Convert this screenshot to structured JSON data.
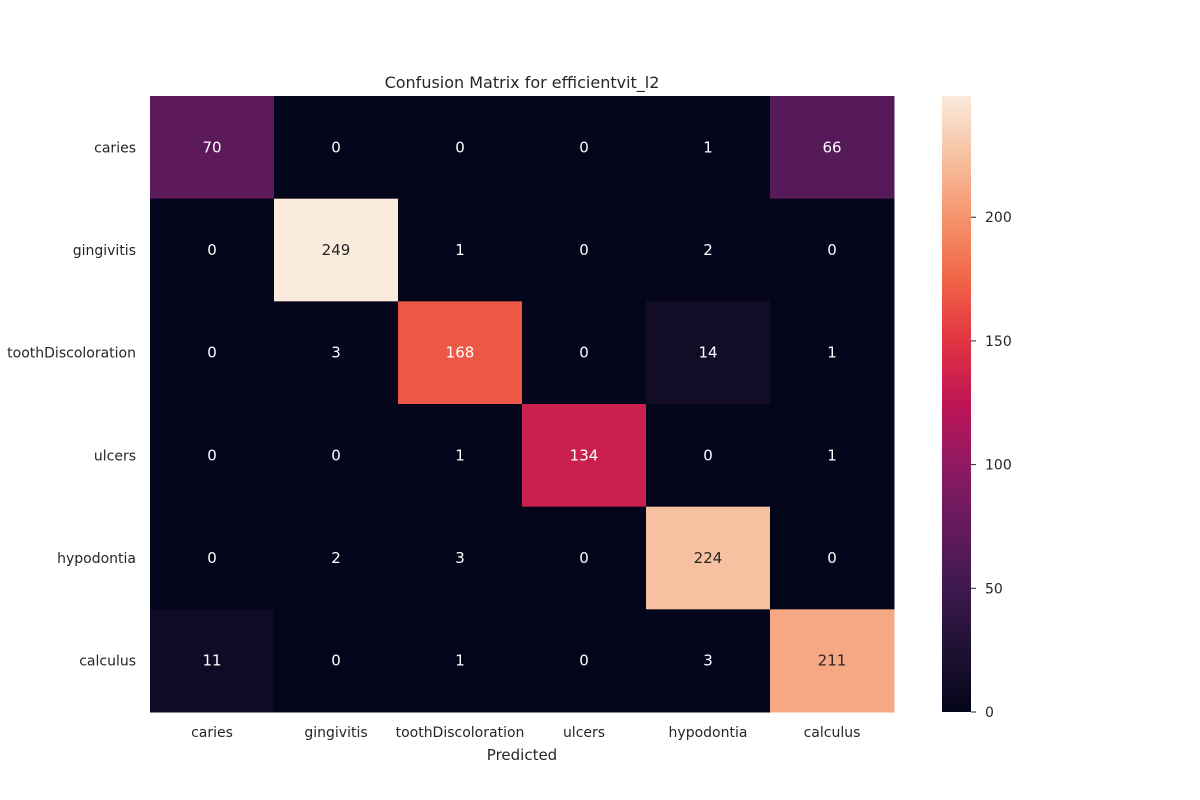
{
  "chart_data": {
    "type": "heatmap",
    "title": "Confusion Matrix for efficientvit_l2",
    "xlabel": "Predicted",
    "ylabel": "",
    "x_categories": [
      "caries",
      "gingivitis",
      "toothDiscoloration",
      "ulcers",
      "hypodontia",
      "calculus"
    ],
    "y_categories": [
      "caries",
      "gingivitis",
      "toothDiscoloration",
      "ulcers",
      "hypodontia",
      "calculus"
    ],
    "values": [
      [
        70,
        0,
        0,
        0,
        1,
        66
      ],
      [
        0,
        249,
        1,
        0,
        2,
        0
      ],
      [
        0,
        3,
        168,
        0,
        14,
        1
      ],
      [
        0,
        0,
        1,
        134,
        0,
        1
      ],
      [
        0,
        2,
        3,
        0,
        224,
        0
      ],
      [
        11,
        0,
        1,
        0,
        3,
        211
      ]
    ],
    "colormap": "rocket",
    "colorbar": {
      "vmin": 0,
      "vmax": 249,
      "ticks": [
        0,
        50,
        100,
        150,
        200
      ]
    }
  }
}
